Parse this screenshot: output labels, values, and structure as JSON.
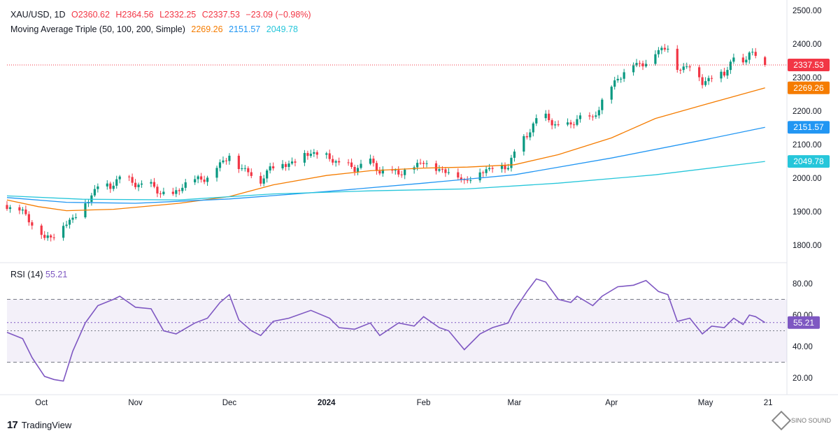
{
  "header": {
    "symbol": "XAU/USD, 1D",
    "open": "O2360.62",
    "high": "H2364.56",
    "low": "L2332.25",
    "close": "C2337.53",
    "change": "−23.09 (−0.98%)",
    "ma_label": "Moving Average Triple (50, 100, 200, Simple)",
    "ma50": "2269.26",
    "ma100": "2151.57",
    "ma200": "2049.78"
  },
  "rsi": {
    "label": "RSI (14)",
    "value": "55.21"
  },
  "footer": {
    "brand": "TradingView",
    "watermark": "SINO SOUND"
  },
  "colors": {
    "up": "#089981",
    "down": "#f23645",
    "ma50": "#f57c00",
    "ma100": "#2196f3",
    "ma200": "#26c6da",
    "rsi": "#7e57c2"
  },
  "chart_data": [
    {
      "type": "candlestick",
      "title": "XAU/USD, 1D",
      "ylim": [
        1760,
        2520
      ],
      "y_ticks": [
        1800,
        1900,
        2000,
        2100,
        2200,
        2300,
        2400,
        2500
      ],
      "y_tick_labels": [
        "1800.00",
        "1900.00",
        "2000.00",
        "2100.00",
        "2200.00",
        "2300.00",
        "2400.00",
        "2500.00"
      ],
      "x_labels": [
        {
          "date": "2023-10-02",
          "label": "Oct"
        },
        {
          "date": "2023-11-01",
          "label": "Nov"
        },
        {
          "date": "2023-12-01",
          "label": "Dec"
        },
        {
          "date": "2024-01-01",
          "label": "2024"
        },
        {
          "date": "2024-02-01",
          "label": "Feb"
        },
        {
          "date": "2024-03-01",
          "label": "Mar"
        },
        {
          "date": "2024-04-01",
          "label": "Apr"
        },
        {
          "date": "2024-05-01",
          "label": "May"
        },
        {
          "date": "2024-05-21",
          "label": "21"
        }
      ],
      "x_start": "2023-09-21",
      "x_end": "2024-05-27",
      "closes": [
        {
          "date": "2023-09-21",
          "close": 1920
        },
        {
          "date": "2023-09-26",
          "close": 1902
        },
        {
          "date": "2023-09-29",
          "close": 1866
        },
        {
          "date": "2023-10-03",
          "close": 1822
        },
        {
          "date": "2023-10-06",
          "close": 1832
        },
        {
          "date": "2023-10-11",
          "close": 1874
        },
        {
          "date": "2023-10-16",
          "close": 1920
        },
        {
          "date": "2023-10-20",
          "close": 1981
        },
        {
          "date": "2023-10-24",
          "close": 1973
        },
        {
          "date": "2023-10-27",
          "close": 2006
        },
        {
          "date": "2023-11-01",
          "close": 1983
        },
        {
          "date": "2023-11-06",
          "close": 1978
        },
        {
          "date": "2023-11-09",
          "close": 1958
        },
        {
          "date": "2023-11-13",
          "close": 1946
        },
        {
          "date": "2023-11-16",
          "close": 1981
        },
        {
          "date": "2023-11-21",
          "close": 1998
        },
        {
          "date": "2023-11-24",
          "close": 2002
        },
        {
          "date": "2023-11-28",
          "close": 2042
        },
        {
          "date": "2023-12-01",
          "close": 2072
        },
        {
          "date": "2023-12-04",
          "close": 2030
        },
        {
          "date": "2023-12-07",
          "close": 2025
        },
        {
          "date": "2023-12-11",
          "close": 1985
        },
        {
          "date": "2023-12-14",
          "close": 2038
        },
        {
          "date": "2023-12-19",
          "close": 2040
        },
        {
          "date": "2023-12-22",
          "close": 2053
        },
        {
          "date": "2023-12-27",
          "close": 2078
        },
        {
          "date": "2024-01-02",
          "close": 2061
        },
        {
          "date": "2024-01-05",
          "close": 2045
        },
        {
          "date": "2024-01-10",
          "close": 2030
        },
        {
          "date": "2024-01-15",
          "close": 2050
        },
        {
          "date": "2024-01-18",
          "close": 2022
        },
        {
          "date": "2024-01-24",
          "close": 2017
        },
        {
          "date": "2024-01-29",
          "close": 2033
        },
        {
          "date": "2024-02-01",
          "close": 2054
        },
        {
          "date": "2024-02-05",
          "close": 2025
        },
        {
          "date": "2024-02-09",
          "close": 2024
        },
        {
          "date": "2024-02-14",
          "close": 1992
        },
        {
          "date": "2024-02-19",
          "close": 2017
        },
        {
          "date": "2024-02-23",
          "close": 2035
        },
        {
          "date": "2024-02-28",
          "close": 2034
        },
        {
          "date": "2024-03-01",
          "close": 2083
        },
        {
          "date": "2024-03-05",
          "close": 2128
        },
        {
          "date": "2024-03-08",
          "close": 2178
        },
        {
          "date": "2024-03-11",
          "close": 2182
        },
        {
          "date": "2024-03-15",
          "close": 2155
        },
        {
          "date": "2024-03-19",
          "close": 2158
        },
        {
          "date": "2024-03-21",
          "close": 2182
        },
        {
          "date": "2024-03-26",
          "close": 2178
        },
        {
          "date": "2024-03-29",
          "close": 2230
        },
        {
          "date": "2024-04-03",
          "close": 2300
        },
        {
          "date": "2024-04-08",
          "close": 2339
        },
        {
          "date": "2024-04-12",
          "close": 2345
        },
        {
          "date": "2024-04-16",
          "close": 2383
        },
        {
          "date": "2024-04-19",
          "close": 2393
        },
        {
          "date": "2024-04-22",
          "close": 2325
        },
        {
          "date": "2024-04-26",
          "close": 2338
        },
        {
          "date": "2024-04-30",
          "close": 2286
        },
        {
          "date": "2024-05-03",
          "close": 2302
        },
        {
          "date": "2024-05-07",
          "close": 2314
        },
        {
          "date": "2024-05-10",
          "close": 2360
        },
        {
          "date": "2024-05-13",
          "close": 2336
        },
        {
          "date": "2024-05-14",
          "close": 2358
        },
        {
          "date": "2024-05-15",
          "close": 2385
        },
        {
          "date": "2024-05-16",
          "close": 2376
        },
        {
          "date": "2024-05-17",
          "close": 2360.62
        },
        {
          "date": "2024-05-20",
          "close": 2337.53
        }
      ],
      "series": [
        {
          "name": "MA 50",
          "color": "#f57c00",
          "points": [
            [
              "2023-09-21",
              1935
            ],
            [
              "2023-10-01",
              1915
            ],
            [
              "2023-10-10",
              1903
            ],
            [
              "2023-10-25",
              1907
            ],
            [
              "2023-11-15",
              1925
            ],
            [
              "2023-12-01",
              1945
            ],
            [
              "2023-12-15",
              1980
            ],
            [
              "2024-01-01",
              2008
            ],
            [
              "2024-01-15",
              2022
            ],
            [
              "2024-02-01",
              2030
            ],
            [
              "2024-02-15",
              2033
            ],
            [
              "2024-03-01",
              2040
            ],
            [
              "2024-03-15",
              2070
            ],
            [
              "2024-04-01",
              2120
            ],
            [
              "2024-04-15",
              2178
            ],
            [
              "2024-05-01",
              2220
            ],
            [
              "2024-05-20",
              2269.26
            ]
          ]
        },
        {
          "name": "MA 100",
          "color": "#2196f3",
          "points": [
            [
              "2023-09-21",
              1942
            ],
            [
              "2023-10-10",
              1928
            ],
            [
              "2023-11-01",
              1925
            ],
            [
              "2023-12-01",
              1938
            ],
            [
              "2024-01-01",
              1960
            ],
            [
              "2024-02-01",
              1985
            ],
            [
              "2024-03-01",
              2010
            ],
            [
              "2024-04-01",
              2060
            ],
            [
              "2024-05-01",
              2115
            ],
            [
              "2024-05-20",
              2151.57
            ]
          ]
        },
        {
          "name": "MA 200",
          "color": "#26c6da",
          "points": [
            [
              "2023-09-21",
              1947
            ],
            [
              "2023-10-15",
              1937
            ],
            [
              "2023-11-15",
              1935
            ],
            [
              "2023-12-15",
              1953
            ],
            [
              "2024-01-15",
              1962
            ],
            [
              "2024-02-15",
              1968
            ],
            [
              "2024-03-15",
              1985
            ],
            [
              "2024-04-15",
              2010
            ],
            [
              "2024-05-20",
              2049.78
            ]
          ]
        }
      ],
      "last_price": "2337.53"
    },
    {
      "type": "line",
      "title": "RSI (14)",
      "ylim": [
        10,
        90
      ],
      "y_ticks": [
        20,
        40,
        60,
        80
      ],
      "y_tick_labels": [
        "20.00",
        "40.00",
        "60.00",
        "80.00"
      ],
      "bands": [
        30,
        50,
        70
      ],
      "series": [
        {
          "name": "RSI (14)",
          "color": "#7e57c2",
          "points": [
            [
              "2023-09-21",
              49
            ],
            [
              "2023-09-26",
              45
            ],
            [
              "2023-09-29",
              33
            ],
            [
              "2023-10-03",
              21
            ],
            [
              "2023-10-06",
              19
            ],
            [
              "2023-10-09",
              18
            ],
            [
              "2023-10-12",
              37
            ],
            [
              "2023-10-16",
              55
            ],
            [
              "2023-10-20",
              66
            ],
            [
              "2023-10-25",
              70
            ],
            [
              "2023-10-27",
              72
            ],
            [
              "2023-11-01",
              65
            ],
            [
              "2023-11-06",
              64
            ],
            [
              "2023-11-10",
              50
            ],
            [
              "2023-11-14",
              48
            ],
            [
              "2023-11-20",
              55
            ],
            [
              "2023-11-24",
              58
            ],
            [
              "2023-11-28",
              68
            ],
            [
              "2023-12-01",
              73
            ],
            [
              "2023-12-04",
              57
            ],
            [
              "2023-12-08",
              50
            ],
            [
              "2023-12-11",
              47
            ],
            [
              "2023-12-15",
              56
            ],
            [
              "2023-12-20",
              58
            ],
            [
              "2023-12-27",
              63
            ],
            [
              "2024-01-02",
              58
            ],
            [
              "2024-01-05",
              52
            ],
            [
              "2024-01-10",
              51
            ],
            [
              "2024-01-15",
              55
            ],
            [
              "2024-01-18",
              47
            ],
            [
              "2024-01-24",
              55
            ],
            [
              "2024-01-29",
              53
            ],
            [
              "2024-02-01",
              59
            ],
            [
              "2024-02-06",
              52
            ],
            [
              "2024-02-09",
              50
            ],
            [
              "2024-02-14",
              38
            ],
            [
              "2024-02-19",
              48
            ],
            [
              "2024-02-23",
              52
            ],
            [
              "2024-02-28",
              55
            ],
            [
              "2024-03-01",
              63
            ],
            [
              "2024-03-05",
              75
            ],
            [
              "2024-03-08",
              83
            ],
            [
              "2024-03-11",
              81
            ],
            [
              "2024-03-15",
              70
            ],
            [
              "2024-03-19",
              68
            ],
            [
              "2024-03-21",
              72
            ],
            [
              "2024-03-26",
              66
            ],
            [
              "2024-03-29",
              72
            ],
            [
              "2024-04-03",
              78
            ],
            [
              "2024-04-08",
              79
            ],
            [
              "2024-04-12",
              82
            ],
            [
              "2024-04-16",
              75
            ],
            [
              "2024-04-19",
              73
            ],
            [
              "2024-04-22",
              56
            ],
            [
              "2024-04-26",
              58
            ],
            [
              "2024-04-30",
              48
            ],
            [
              "2024-05-03",
              53
            ],
            [
              "2024-05-07",
              52
            ],
            [
              "2024-05-10",
              58
            ],
            [
              "2024-05-13",
              54
            ],
            [
              "2024-05-15",
              60
            ],
            [
              "2024-05-17",
              59
            ],
            [
              "2024-05-20",
              55.21
            ]
          ]
        }
      ],
      "last_value": "55.21"
    }
  ]
}
